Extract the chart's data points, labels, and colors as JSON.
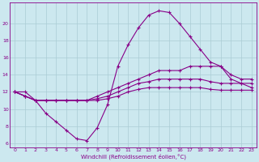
{
  "x": [
    0,
    1,
    2,
    3,
    4,
    5,
    6,
    7,
    8,
    9,
    10,
    11,
    12,
    13,
    14,
    15,
    16,
    17,
    18,
    19,
    20,
    21,
    22,
    23
  ],
  "temp": [
    12,
    12,
    11,
    9.5,
    8.5,
    7.5,
    6.5,
    6.3,
    7.8,
    10.5,
    15,
    17.5,
    19.5,
    21,
    21.5,
    21.3,
    20,
    18.5,
    17,
    15.5,
    15,
    13.5,
    13,
    12.5
  ],
  "line2": [
    12,
    11.5,
    11,
    11,
    11,
    11,
    11,
    11,
    11.5,
    12,
    12.5,
    13,
    13.5,
    14,
    14.5,
    14.5,
    14.5,
    15,
    15,
    15,
    15,
    14,
    13.5,
    13.5
  ],
  "line3": [
    12,
    11.5,
    11,
    11,
    11,
    11,
    11,
    11,
    11.2,
    11.5,
    12,
    12.5,
    13,
    13.2,
    13.5,
    13.5,
    13.5,
    13.5,
    13.5,
    13.2,
    13,
    13,
    13,
    13
  ],
  "line4": [
    12,
    11.5,
    11,
    11,
    11,
    11,
    11,
    11,
    11,
    11.2,
    11.5,
    12,
    12.3,
    12.5,
    12.5,
    12.5,
    12.5,
    12.5,
    12.5,
    12.3,
    12.2,
    12.2,
    12.2,
    12.2
  ],
  "bg_color": "#cce8ef",
  "grid_color": "#aaccd4",
  "line_color": "#880088",
  "xlabel": "Windchill (Refroidissement éolien,°C)",
  "ylim": [
    5.5,
    22.5
  ],
  "yticks": [
    6,
    8,
    10,
    12,
    14,
    16,
    18,
    20
  ],
  "xlim": [
    -0.5,
    23.5
  ],
  "xticks": [
    0,
    1,
    2,
    3,
    4,
    5,
    6,
    7,
    8,
    9,
    10,
    11,
    12,
    13,
    14,
    15,
    16,
    17,
    18,
    19,
    20,
    21,
    22,
    23
  ]
}
